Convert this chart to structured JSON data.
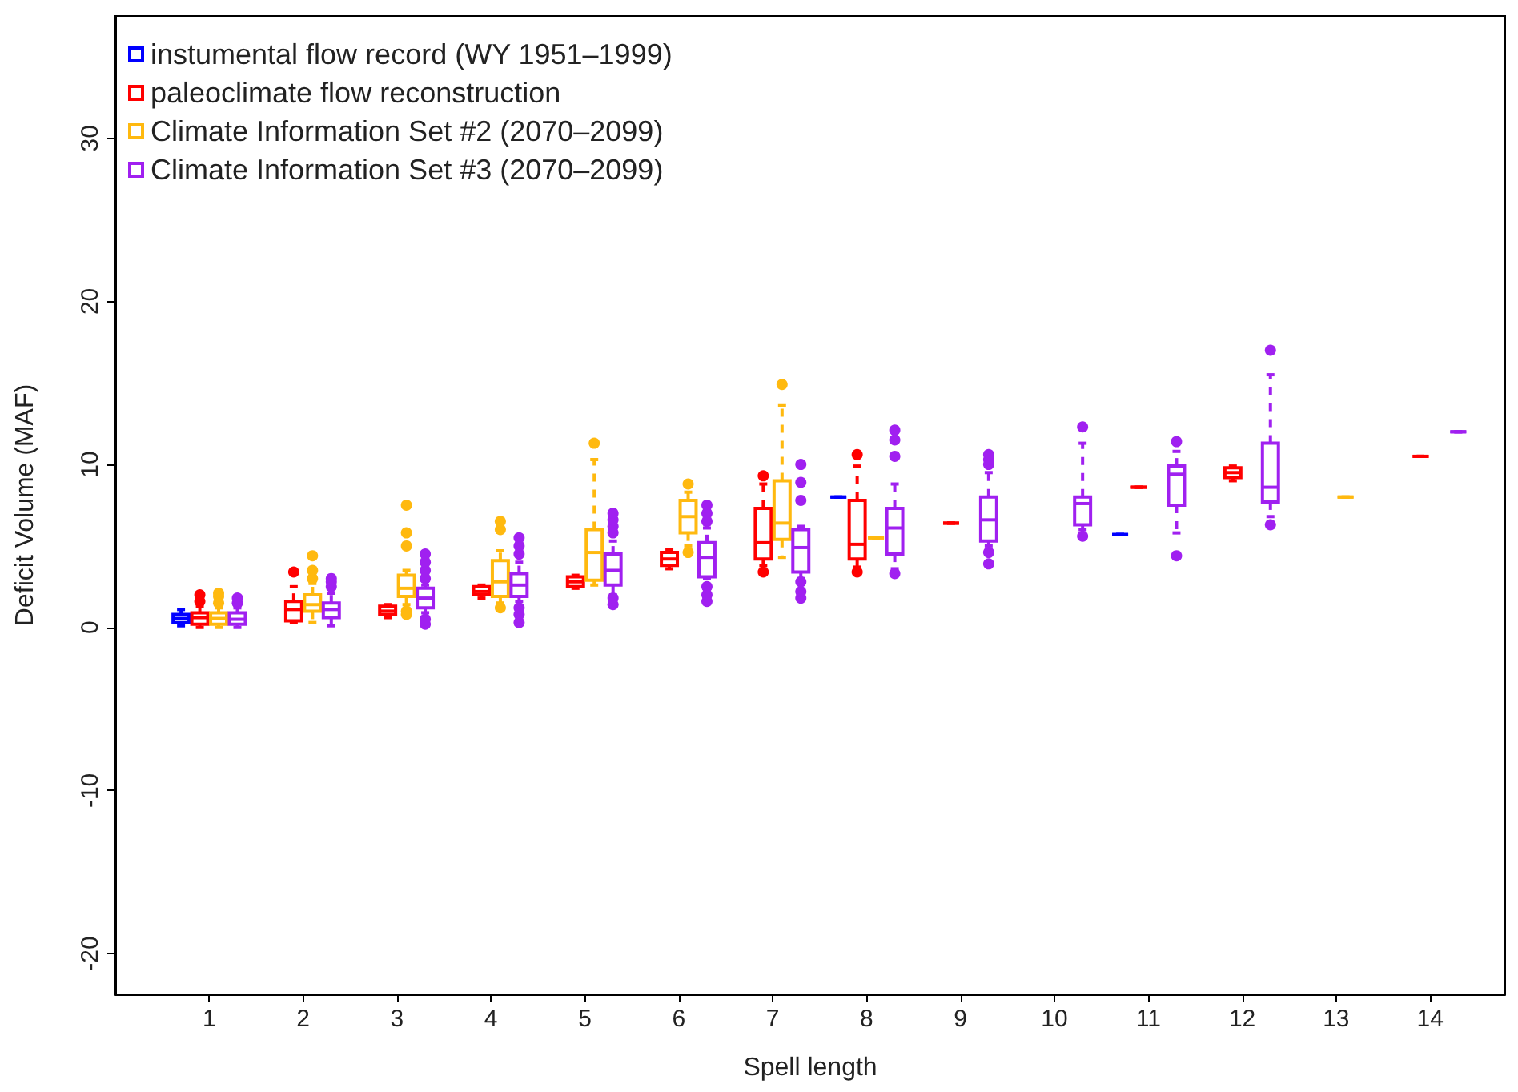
{
  "chart_data": {
    "type": "box",
    "xlabel": "Spell length",
    "ylabel": "Deficit Volume (MAF)",
    "x": [
      1,
      2,
      3,
      4,
      5,
      6,
      7,
      8,
      9,
      10,
      11,
      12,
      13,
      14
    ],
    "xlim": [
      0,
      14.8
    ],
    "xticks": [
      1,
      2,
      3,
      4,
      5,
      6,
      7,
      8,
      9,
      10,
      11,
      12,
      13,
      14
    ],
    "ylim": [
      -22.5,
      37.5
    ],
    "yticks": [
      -20,
      -10,
      0,
      10,
      20,
      30
    ],
    "legend": "top left",
    "series": [
      {
        "name": "instumental flow record (WY 1951–1999)",
        "color": "#0000ff",
        "boxes": [
          {
            "low": 0.1,
            "q1": 0.3,
            "median": 0.55,
            "q3": 0.8,
            "high": 1.1
          },
          null,
          null,
          null,
          null,
          null,
          null,
          {
            "low": 8.0,
            "q1": 8.0,
            "median": 8.0,
            "q3": 8.0,
            "high": 8.0
          },
          null,
          null,
          {
            "low": 5.7,
            "q1": 5.7,
            "median": 5.7,
            "q3": 5.7,
            "high": 5.7
          },
          null,
          null,
          null
        ]
      },
      {
        "name": "paleoclimate flow reconstruction",
        "color": "#ff0000",
        "boxes": [
          {
            "low": 0,
            "q1": 0.2,
            "median": 0.6,
            "q3": 0.9,
            "high": 1.3,
            "outliers": [
              1.6,
              2.0
            ]
          },
          {
            "low": 0.3,
            "q1": 0.4,
            "median": 1.1,
            "q3": 1.6,
            "high": 2.5,
            "outliers": [
              3.4
            ]
          },
          {
            "low": 0.6,
            "q1": 0.8,
            "median": 1.0,
            "q3": 1.3,
            "high": 1.4
          },
          {
            "low": 1.8,
            "q1": 2.0,
            "median": 2.2,
            "q3": 2.5,
            "high": 2.6
          },
          {
            "low": 2.4,
            "q1": 2.5,
            "median": 2.8,
            "q3": 3.1,
            "high": 3.2
          },
          {
            "low": 3.6,
            "q1": 3.8,
            "median": 4.2,
            "q3": 4.6,
            "high": 4.8
          },
          {
            "low": 3.8,
            "q1": 4.2,
            "median": 5.2,
            "q3": 7.3,
            "high": 8.8,
            "outliers": [
              3.4,
              9.3
            ]
          },
          {
            "low": 3.7,
            "q1": 4.2,
            "median": 5.1,
            "q3": 7.8,
            "high": 9.9,
            "outliers": [
              3.4,
              10.6
            ]
          },
          {
            "low": 6.4,
            "q1": 6.4,
            "median": 6.4,
            "q3": 6.4,
            "high": 6.4
          },
          null,
          {
            "low": 8.6,
            "q1": 8.6,
            "median": 8.6,
            "q3": 8.6,
            "high": 8.6
          },
          {
            "low": 9.0,
            "q1": 9.2,
            "median": 9.5,
            "q3": 9.8,
            "high": 9.9
          },
          null,
          {
            "low": 10.5,
            "q1": 10.5,
            "median": 10.5,
            "q3": 10.5,
            "high": 10.5
          }
        ]
      },
      {
        "name": "Climate Information Set #2 (2070–2099)",
        "color": "#ffb90f",
        "boxes": [
          {
            "low": 0,
            "q1": 0.2,
            "median": 0.55,
            "q3": 0.9,
            "high": 1.2,
            "outliers": [
              1.5,
              1.9,
              2.1
            ]
          },
          {
            "low": 0.3,
            "q1": 1.0,
            "median": 1.4,
            "q3": 2.0,
            "high": 2.7,
            "outliers": [
              3.0,
              3.5,
              4.4
            ]
          },
          {
            "low": 1.4,
            "q1": 1.9,
            "median": 2.4,
            "q3": 3.2,
            "high": 3.5,
            "outliers": [
              0.8,
              1.0,
              5.0,
              5.8,
              7.5
            ]
          },
          {
            "low": 1.5,
            "q1": 1.9,
            "median": 2.8,
            "q3": 4.1,
            "high": 4.7,
            "outliers": [
              1.2,
              6.0,
              6.5
            ]
          },
          {
            "low": 2.6,
            "q1": 2.9,
            "median": 4.6,
            "q3": 6.0,
            "high": 10.3,
            "outliers": [
              11.3
            ]
          },
          {
            "low": 5.0,
            "q1": 5.8,
            "median": 6.8,
            "q3": 7.8,
            "high": 8.3,
            "outliers": [
              4.6,
              8.8
            ]
          },
          {
            "low": 4.3,
            "q1": 5.4,
            "median": 6.4,
            "q3": 9.0,
            "high": 13.6,
            "outliers": [
              14.9
            ]
          },
          {
            "low": 5.5,
            "q1": 5.5,
            "median": 5.5,
            "q3": 5.5,
            "high": 5.5
          },
          null,
          null,
          null,
          null,
          {
            "low": 8.0,
            "q1": 8.0,
            "median": 8.0,
            "q3": 8.0,
            "high": 8.0
          },
          null
        ]
      },
      {
        "name": "Climate Information Set #3 (2070–2099)",
        "color": "#a020f0",
        "boxes": [
          {
            "low": 0,
            "q1": 0.2,
            "median": 0.5,
            "q3": 0.9,
            "high": 1.2,
            "outliers": [
              1.5,
              1.8
            ]
          },
          {
            "low": 0.1,
            "q1": 0.6,
            "median": 1.1,
            "q3": 1.5,
            "high": 2.1,
            "outliers": [
              2.5,
              2.8,
              3.0
            ]
          },
          {
            "low": 0.9,
            "q1": 1.2,
            "median": 1.8,
            "q3": 2.4,
            "high": 2.6,
            "outliers": [
              0.2,
              0.5,
              3.0,
              3.5,
              4.0,
              4.5
            ]
          },
          {
            "low": 1.6,
            "q1": 1.9,
            "median": 2.6,
            "q3": 3.3,
            "high": 4.0,
            "outliers": [
              0.3,
              0.8,
              1.2,
              4.5,
              5.0,
              5.5
            ]
          },
          {
            "low": 2.0,
            "q1": 2.6,
            "median": 3.5,
            "q3": 4.5,
            "high": 5.3,
            "outliers": [
              1.4,
              1.8,
              5.8,
              6.2,
              6.6,
              7.0
            ]
          },
          {
            "low": 3.0,
            "q1": 3.1,
            "median": 4.3,
            "q3": 5.2,
            "high": 6.1,
            "outliers": [
              1.6,
              2.0,
              2.5,
              6.5,
              7.0,
              7.5
            ]
          },
          {
            "low": 3.0,
            "q1": 3.4,
            "median": 4.9,
            "q3": 6.0,
            "high": 6.2,
            "outliers": [
              1.8,
              2.2,
              2.8,
              7.8,
              8.9,
              10.0
            ]
          },
          {
            "low": 3.6,
            "q1": 4.5,
            "median": 6.1,
            "q3": 7.3,
            "high": 8.8,
            "outliers": [
              3.3,
              10.5,
              11.5,
              12.1
            ]
          },
          {
            "low": 5.0,
            "q1": 5.3,
            "median": 6.6,
            "q3": 8.0,
            "high": 9.5,
            "outliers": [
              3.9,
              4.6,
              10.0,
              10.3,
              10.6
            ]
          },
          {
            "low": 6.0,
            "q1": 6.3,
            "median": 7.6,
            "q3": 8.0,
            "high": 11.3,
            "outliers": [
              5.6,
              12.3
            ]
          },
          {
            "low": 5.8,
            "q1": 7.5,
            "median": 9.4,
            "q3": 9.9,
            "high": 10.8,
            "outliers": [
              4.4,
              11.4
            ]
          },
          {
            "low": 6.8,
            "q1": 7.7,
            "median": 8.6,
            "q3": 11.3,
            "high": 15.5,
            "outliers": [
              6.3,
              17.0
            ]
          },
          null,
          {
            "low": 12.0,
            "q1": 12.0,
            "median": 12.0,
            "q3": 12.0,
            "high": 12.0
          }
        ]
      }
    ]
  }
}
